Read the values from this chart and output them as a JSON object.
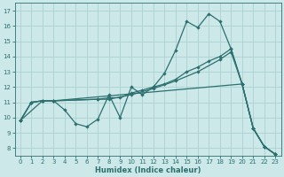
{
  "xlabel": "Humidex (Indice chaleur)",
  "bg_color": "#cce8e8",
  "grid_color": "#b0d4d4",
  "line_color": "#2d7070",
  "xlim": [
    -0.5,
    23.5
  ],
  "ylim": [
    7.5,
    17.5
  ],
  "xticks": [
    0,
    1,
    2,
    3,
    4,
    5,
    6,
    7,
    8,
    9,
    10,
    11,
    12,
    13,
    14,
    15,
    16,
    17,
    18,
    19,
    20,
    21,
    22,
    23
  ],
  "yticks": [
    8,
    9,
    10,
    11,
    12,
    13,
    14,
    15,
    16,
    17
  ],
  "curve1_x": [
    0,
    1,
    2,
    3,
    4,
    5,
    6,
    7,
    8,
    9,
    10,
    11,
    12,
    13,
    14,
    15,
    16,
    17,
    18,
    19,
    20,
    21,
    22,
    23
  ],
  "curve1_y": [
    9.8,
    11.0,
    11.1,
    11.1,
    10.5,
    9.6,
    9.4,
    9.9,
    11.5,
    10.0,
    12.0,
    11.5,
    12.0,
    12.9,
    14.4,
    16.3,
    15.9,
    16.8,
    16.3,
    14.5,
    12.2,
    9.3,
    8.1,
    7.6
  ],
  "curve2_x": [
    0,
    1,
    2,
    3,
    7,
    8,
    9,
    10,
    11,
    12,
    13,
    14,
    15,
    16,
    17,
    18,
    19,
    20,
    21,
    22,
    23
  ],
  "curve2_y": [
    9.8,
    11.0,
    11.1,
    11.1,
    11.2,
    11.3,
    11.3,
    11.6,
    11.8,
    12.0,
    12.2,
    12.5,
    13.0,
    13.3,
    13.7,
    14.0,
    14.5,
    12.2,
    9.3,
    8.1,
    7.6
  ],
  "curve3_x": [
    0,
    1,
    2,
    3,
    7,
    8,
    10,
    12,
    14,
    16,
    18,
    19,
    20,
    21,
    22,
    23
  ],
  "curve3_y": [
    9.8,
    11.0,
    11.1,
    11.1,
    11.2,
    11.2,
    11.5,
    11.9,
    12.4,
    13.0,
    13.8,
    14.3,
    12.2,
    9.3,
    8.1,
    7.6
  ],
  "curve4_x": [
    0,
    2,
    3,
    20,
    21,
    22,
    23
  ],
  "curve4_y": [
    9.8,
    11.1,
    11.1,
    12.2,
    9.3,
    8.1,
    7.6
  ]
}
